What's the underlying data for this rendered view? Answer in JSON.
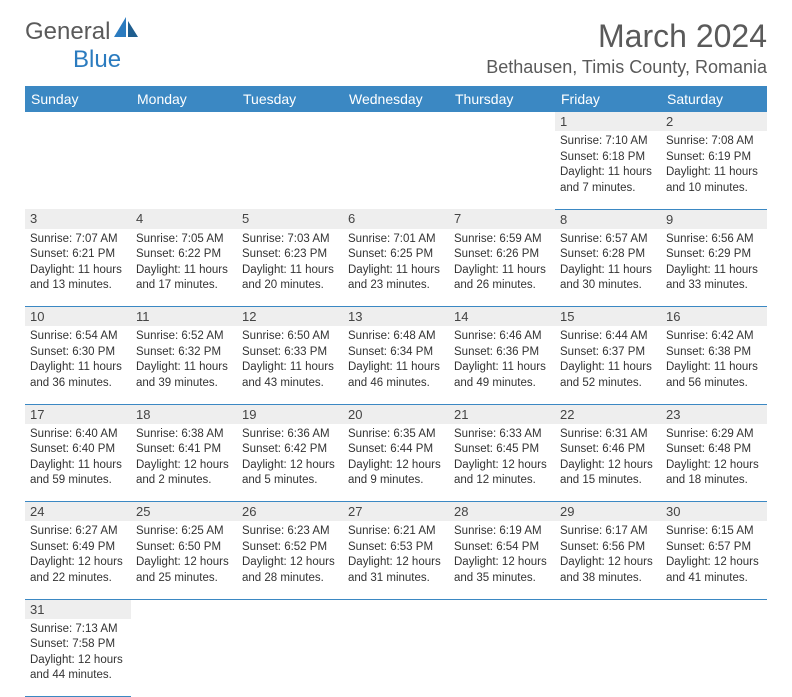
{
  "logo": {
    "gen": "Genera",
    "l": "l",
    "blue": "Blue"
  },
  "title": "March 2024",
  "location": "Bethausen, Timis County, Romania",
  "colors": {
    "header_bg": "#3b88c3",
    "header_text": "#ffffff",
    "daynum_bg": "#eeeeee",
    "border": "#3b88c3",
    "text": "#333333",
    "logo_gray": "#5a5a5a",
    "logo_blue": "#2b7bbf"
  },
  "weekdays": [
    "Sunday",
    "Monday",
    "Tuesday",
    "Wednesday",
    "Thursday",
    "Friday",
    "Saturday"
  ],
  "weeks": [
    {
      "nums": [
        "",
        "",
        "",
        "",
        "",
        "1",
        "2"
      ],
      "cells": [
        null,
        null,
        null,
        null,
        null,
        {
          "sr": "7:10 AM",
          "ss": "6:18 PM",
          "dh": 11,
          "dm": 7
        },
        {
          "sr": "7:08 AM",
          "ss": "6:19 PM",
          "dh": 11,
          "dm": 10
        }
      ]
    },
    {
      "nums": [
        "3",
        "4",
        "5",
        "6",
        "7",
        "8",
        "9"
      ],
      "cells": [
        {
          "sr": "7:07 AM",
          "ss": "6:21 PM",
          "dh": 11,
          "dm": 13
        },
        {
          "sr": "7:05 AM",
          "ss": "6:22 PM",
          "dh": 11,
          "dm": 17
        },
        {
          "sr": "7:03 AM",
          "ss": "6:23 PM",
          "dh": 11,
          "dm": 20
        },
        {
          "sr": "7:01 AM",
          "ss": "6:25 PM",
          "dh": 11,
          "dm": 23
        },
        {
          "sr": "6:59 AM",
          "ss": "6:26 PM",
          "dh": 11,
          "dm": 26
        },
        {
          "sr": "6:57 AM",
          "ss": "6:28 PM",
          "dh": 11,
          "dm": 30
        },
        {
          "sr": "6:56 AM",
          "ss": "6:29 PM",
          "dh": 11,
          "dm": 33
        }
      ]
    },
    {
      "nums": [
        "10",
        "11",
        "12",
        "13",
        "14",
        "15",
        "16"
      ],
      "cells": [
        {
          "sr": "6:54 AM",
          "ss": "6:30 PM",
          "dh": 11,
          "dm": 36
        },
        {
          "sr": "6:52 AM",
          "ss": "6:32 PM",
          "dh": 11,
          "dm": 39
        },
        {
          "sr": "6:50 AM",
          "ss": "6:33 PM",
          "dh": 11,
          "dm": 43
        },
        {
          "sr": "6:48 AM",
          "ss": "6:34 PM",
          "dh": 11,
          "dm": 46
        },
        {
          "sr": "6:46 AM",
          "ss": "6:36 PM",
          "dh": 11,
          "dm": 49
        },
        {
          "sr": "6:44 AM",
          "ss": "6:37 PM",
          "dh": 11,
          "dm": 52
        },
        {
          "sr": "6:42 AM",
          "ss": "6:38 PM",
          "dh": 11,
          "dm": 56
        }
      ]
    },
    {
      "nums": [
        "17",
        "18",
        "19",
        "20",
        "21",
        "22",
        "23"
      ],
      "cells": [
        {
          "sr": "6:40 AM",
          "ss": "6:40 PM",
          "dh": 11,
          "dm": 59
        },
        {
          "sr": "6:38 AM",
          "ss": "6:41 PM",
          "dh": 12,
          "dm": 2
        },
        {
          "sr": "6:36 AM",
          "ss": "6:42 PM",
          "dh": 12,
          "dm": 5
        },
        {
          "sr": "6:35 AM",
          "ss": "6:44 PM",
          "dh": 12,
          "dm": 9
        },
        {
          "sr": "6:33 AM",
          "ss": "6:45 PM",
          "dh": 12,
          "dm": 12
        },
        {
          "sr": "6:31 AM",
          "ss": "6:46 PM",
          "dh": 12,
          "dm": 15
        },
        {
          "sr": "6:29 AM",
          "ss": "6:48 PM",
          "dh": 12,
          "dm": 18
        }
      ]
    },
    {
      "nums": [
        "24",
        "25",
        "26",
        "27",
        "28",
        "29",
        "30"
      ],
      "cells": [
        {
          "sr": "6:27 AM",
          "ss": "6:49 PM",
          "dh": 12,
          "dm": 22
        },
        {
          "sr": "6:25 AM",
          "ss": "6:50 PM",
          "dh": 12,
          "dm": 25
        },
        {
          "sr": "6:23 AM",
          "ss": "6:52 PM",
          "dh": 12,
          "dm": 28
        },
        {
          "sr": "6:21 AM",
          "ss": "6:53 PM",
          "dh": 12,
          "dm": 31
        },
        {
          "sr": "6:19 AM",
          "ss": "6:54 PM",
          "dh": 12,
          "dm": 35
        },
        {
          "sr": "6:17 AM",
          "ss": "6:56 PM",
          "dh": 12,
          "dm": 38
        },
        {
          "sr": "6:15 AM",
          "ss": "6:57 PM",
          "dh": 12,
          "dm": 41
        }
      ]
    },
    {
      "nums": [
        "31",
        "",
        "",
        "",
        "",
        "",
        ""
      ],
      "cells": [
        {
          "sr": "7:13 AM",
          "ss": "7:58 PM",
          "dh": 12,
          "dm": 44
        },
        null,
        null,
        null,
        null,
        null,
        null
      ]
    }
  ]
}
